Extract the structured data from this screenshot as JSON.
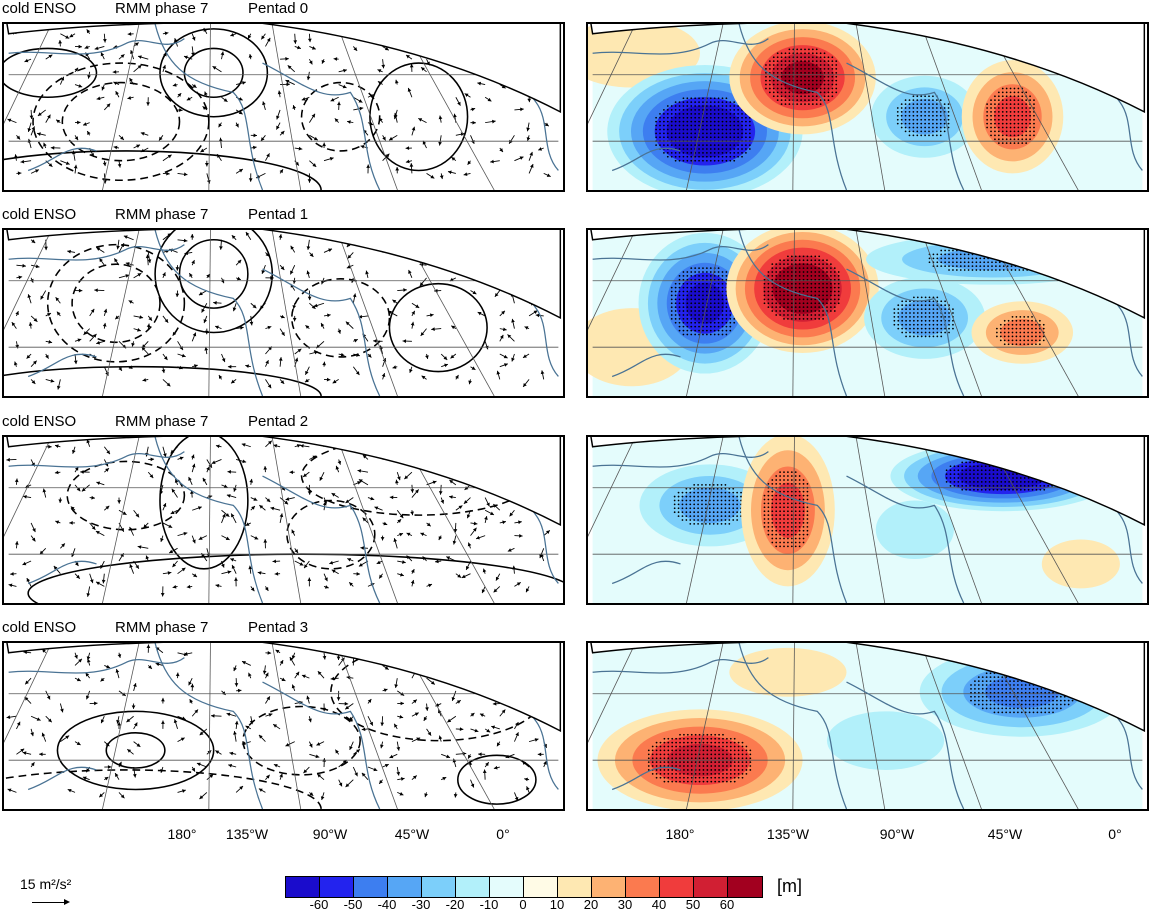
{
  "rows": [
    {
      "enso": "cold ENSO",
      "phase": "RMM phase 7",
      "pentad": "Pentad 0"
    },
    {
      "enso": "cold ENSO",
      "phase": "RMM phase 7",
      "pentad": "Pentad 1"
    },
    {
      "enso": "cold ENSO",
      "phase": "RMM phase 7",
      "pentad": "Pentad 2"
    },
    {
      "enso": "cold ENSO",
      "phase": "RMM phase 7",
      "pentad": "Pentad 3"
    }
  ],
  "longitude_labels": [
    "180°",
    "135°W",
    "90°W",
    "45°W",
    "0°"
  ],
  "reference_vector": {
    "label": "15 m²/s²"
  },
  "colorbar": {
    "unit": "[m]",
    "ticks": [
      "-60",
      "-50",
      "-40",
      "-30",
      "-20",
      "-10",
      "0",
      "10",
      "20",
      "30",
      "40",
      "50",
      "60"
    ],
    "colors": [
      "#1a0ccc",
      "#2323ee",
      "#3d7ef0",
      "#56a6f5",
      "#7ccffa",
      "#b2f0fa",
      "#e4fcfc",
      "#fffbe6",
      "#fee8b2",
      "#fdb273",
      "#fb7a4f",
      "#f03c3c",
      "#d11f33",
      "#a2001f"
    ]
  }
}
